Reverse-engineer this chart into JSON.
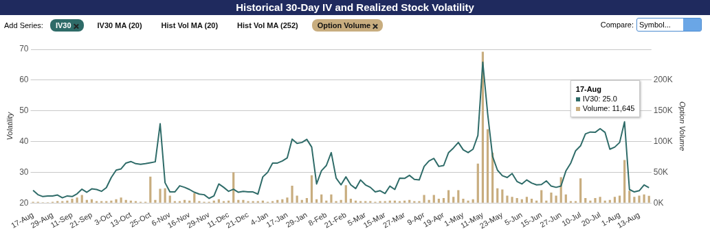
{
  "chart_data": {
    "type": "line",
    "title": "Historical 30-Day IV and Realized Stock Volatility",
    "ylabel": "Volatility",
    "y2label": "Option Volume",
    "legend_title": "Add Series:",
    "legend": "top left",
    "grid": "y",
    "marker": "none",
    "line_style": "solid",
    "categories": [
      "17-Aug",
      null,
      null,
      null,
      "29-Aug",
      null,
      null,
      null,
      "11-Sep",
      null,
      null,
      null,
      "21-Sep",
      null,
      null,
      null,
      "3-Oct",
      null,
      null,
      null,
      "13-Oct",
      null,
      null,
      null,
      "25-Oct",
      null,
      null,
      null,
      "6-Nov",
      null,
      null,
      null,
      "16-Nov",
      null,
      null,
      null,
      "29-Nov",
      null,
      null,
      null,
      "11-Dec",
      null,
      null,
      null,
      "21-Dec",
      null,
      null,
      null,
      "4-Jan",
      null,
      null,
      null,
      "17-Jan",
      null,
      null,
      null,
      "29-Jan",
      null,
      null,
      null,
      "8-Feb",
      null,
      null,
      null,
      "21-Feb",
      null,
      null,
      null,
      "5-Mar",
      null,
      null,
      null,
      "15-Mar",
      null,
      null,
      null,
      "27-Mar",
      null,
      null,
      null,
      "9-Apr",
      null,
      null,
      null,
      "19-Apr",
      null,
      null,
      null,
      "1-May",
      null,
      null,
      null,
      "11-May",
      null,
      null,
      null,
      "23-May",
      null,
      null,
      null,
      "5-Jun",
      null,
      null,
      null,
      "15-Jun",
      null,
      null,
      null,
      "27-Jun",
      null,
      null,
      null,
      "10-Jul",
      null,
      null,
      null,
      "20-Jul",
      null,
      null,
      null,
      "1-Aug",
      null,
      null,
      null,
      "13-Aug",
      null,
      null
    ],
    "series": [
      {
        "name": "Option Volume",
        "type": "bar",
        "axis": "y2",
        "color": "#c8ad7f",
        "values": [
          2000,
          2000,
          1000,
          1000,
          2000,
          3000,
          3000,
          4000,
          7000,
          9000,
          13000,
          5000,
          6000,
          3000,
          3000,
          3000,
          4000,
          6000,
          9000,
          5000,
          4000,
          3000,
          2000,
          2000,
          43000,
          5000,
          23000,
          24000,
          12000,
          3000,
          3000,
          5000,
          4000,
          16000,
          3000,
          2000,
          2000,
          4000,
          6000,
          3000,
          4000,
          50000,
          5000,
          5000,
          3000,
          3000,
          3000,
          4000,
          2000,
          3000,
          5000,
          6000,
          9000,
          28000,
          12000,
          5000,
          8000,
          45000,
          6000,
          14000,
          4000,
          14000,
          3000,
          5000,
          29000,
          7000,
          4000,
          3000,
          3000,
          3000,
          2000,
          3000,
          3000,
          4000,
          4000,
          3000,
          4000,
          5000,
          3000,
          3000,
          13000,
          5000,
          13000,
          7000,
          8000,
          21000,
          10000,
          21000,
          7000,
          4000,
          6000,
          64000,
          246000,
          120000,
          82000,
          24000,
          22000,
          12000,
          10000,
          8000,
          6000,
          10000,
          7000,
          4000,
          21000,
          4000,
          17000,
          12000,
          42000,
          14000,
          3000,
          3000,
          40000,
          8000,
          4000,
          8000,
          10000,
          4000,
          5000,
          10000,
          12000,
          70000,
          20000,
          10000,
          12000,
          14000,
          11645
        ]
      },
      {
        "name": "IV30",
        "axis": "y",
        "color": "#2e6b68",
        "values": [
          24.1,
          22.7,
          22.1,
          22.3,
          22.3,
          22.6,
          21.7,
          22.3,
          22.1,
          23.0,
          24.5,
          23.5,
          24.6,
          24.4,
          23.8,
          25.0,
          28.3,
          30.7,
          31.1,
          33.0,
          33.5,
          32.8,
          32.6,
          32.8,
          33.1,
          33.4,
          45.8,
          26.6,
          23.6,
          23.6,
          25.6,
          25.1,
          24.4,
          23.5,
          22.9,
          22.7,
          21.5,
          22.3,
          26.2,
          25.1,
          23.8,
          24.5,
          23.5,
          23.8,
          23.6,
          23.6,
          22.9,
          28.5,
          30.0,
          33.0,
          33.0,
          33.7,
          34.7,
          40.8,
          39.4,
          39.7,
          40.7,
          38.2,
          26.2,
          30.5,
          32.2,
          36.4,
          28.1,
          25.9,
          28.5,
          25.9,
          24.7,
          27.5,
          25.9,
          25.1,
          23.6,
          24.0,
          23.1,
          25.5,
          24.4,
          28.1,
          28.0,
          29.0,
          27.7,
          27.5,
          31.9,
          33.7,
          34.5,
          31.9,
          32.2,
          36.4,
          37.9,
          39.7,
          37.3,
          36.4,
          37.5,
          42.0,
          65.8,
          49.0,
          35.2,
          30.7,
          28.9,
          28.3,
          29.6,
          27.0,
          26.2,
          27.5,
          26.5,
          25.9,
          26.0,
          27.2,
          25.5,
          25.1,
          25.5,
          30.4,
          33.0,
          37.0,
          38.6,
          42.5,
          43.1,
          43.0,
          44.2,
          43.0,
          37.5,
          38.2,
          39.7,
          46.4,
          24.4,
          23.6,
          24.0,
          25.9,
          25.0
        ]
      }
    ],
    "ylim": [
      20,
      70
    ],
    "yticks": [
      20,
      30,
      40,
      50,
      60,
      70
    ],
    "y2lim": [
      0,
      250000
    ],
    "y2ticks": [
      {
        "value": 0,
        "label": "0K"
      },
      {
        "value": 50000,
        "label": "50K"
      },
      {
        "value": 100000,
        "label": "100K"
      },
      {
        "value": 150000,
        "label": "150K"
      },
      {
        "value": 200000,
        "label": "200K"
      }
    ],
    "annotations": [
      "IV30 MA (20)",
      "Hist Vol MA (20)",
      "Hist Vol MA (252)",
      "Compare:",
      "Symbol...",
      "17-Aug",
      "IV30: 25.0",
      "Volume: 11,645"
    ]
  }
}
